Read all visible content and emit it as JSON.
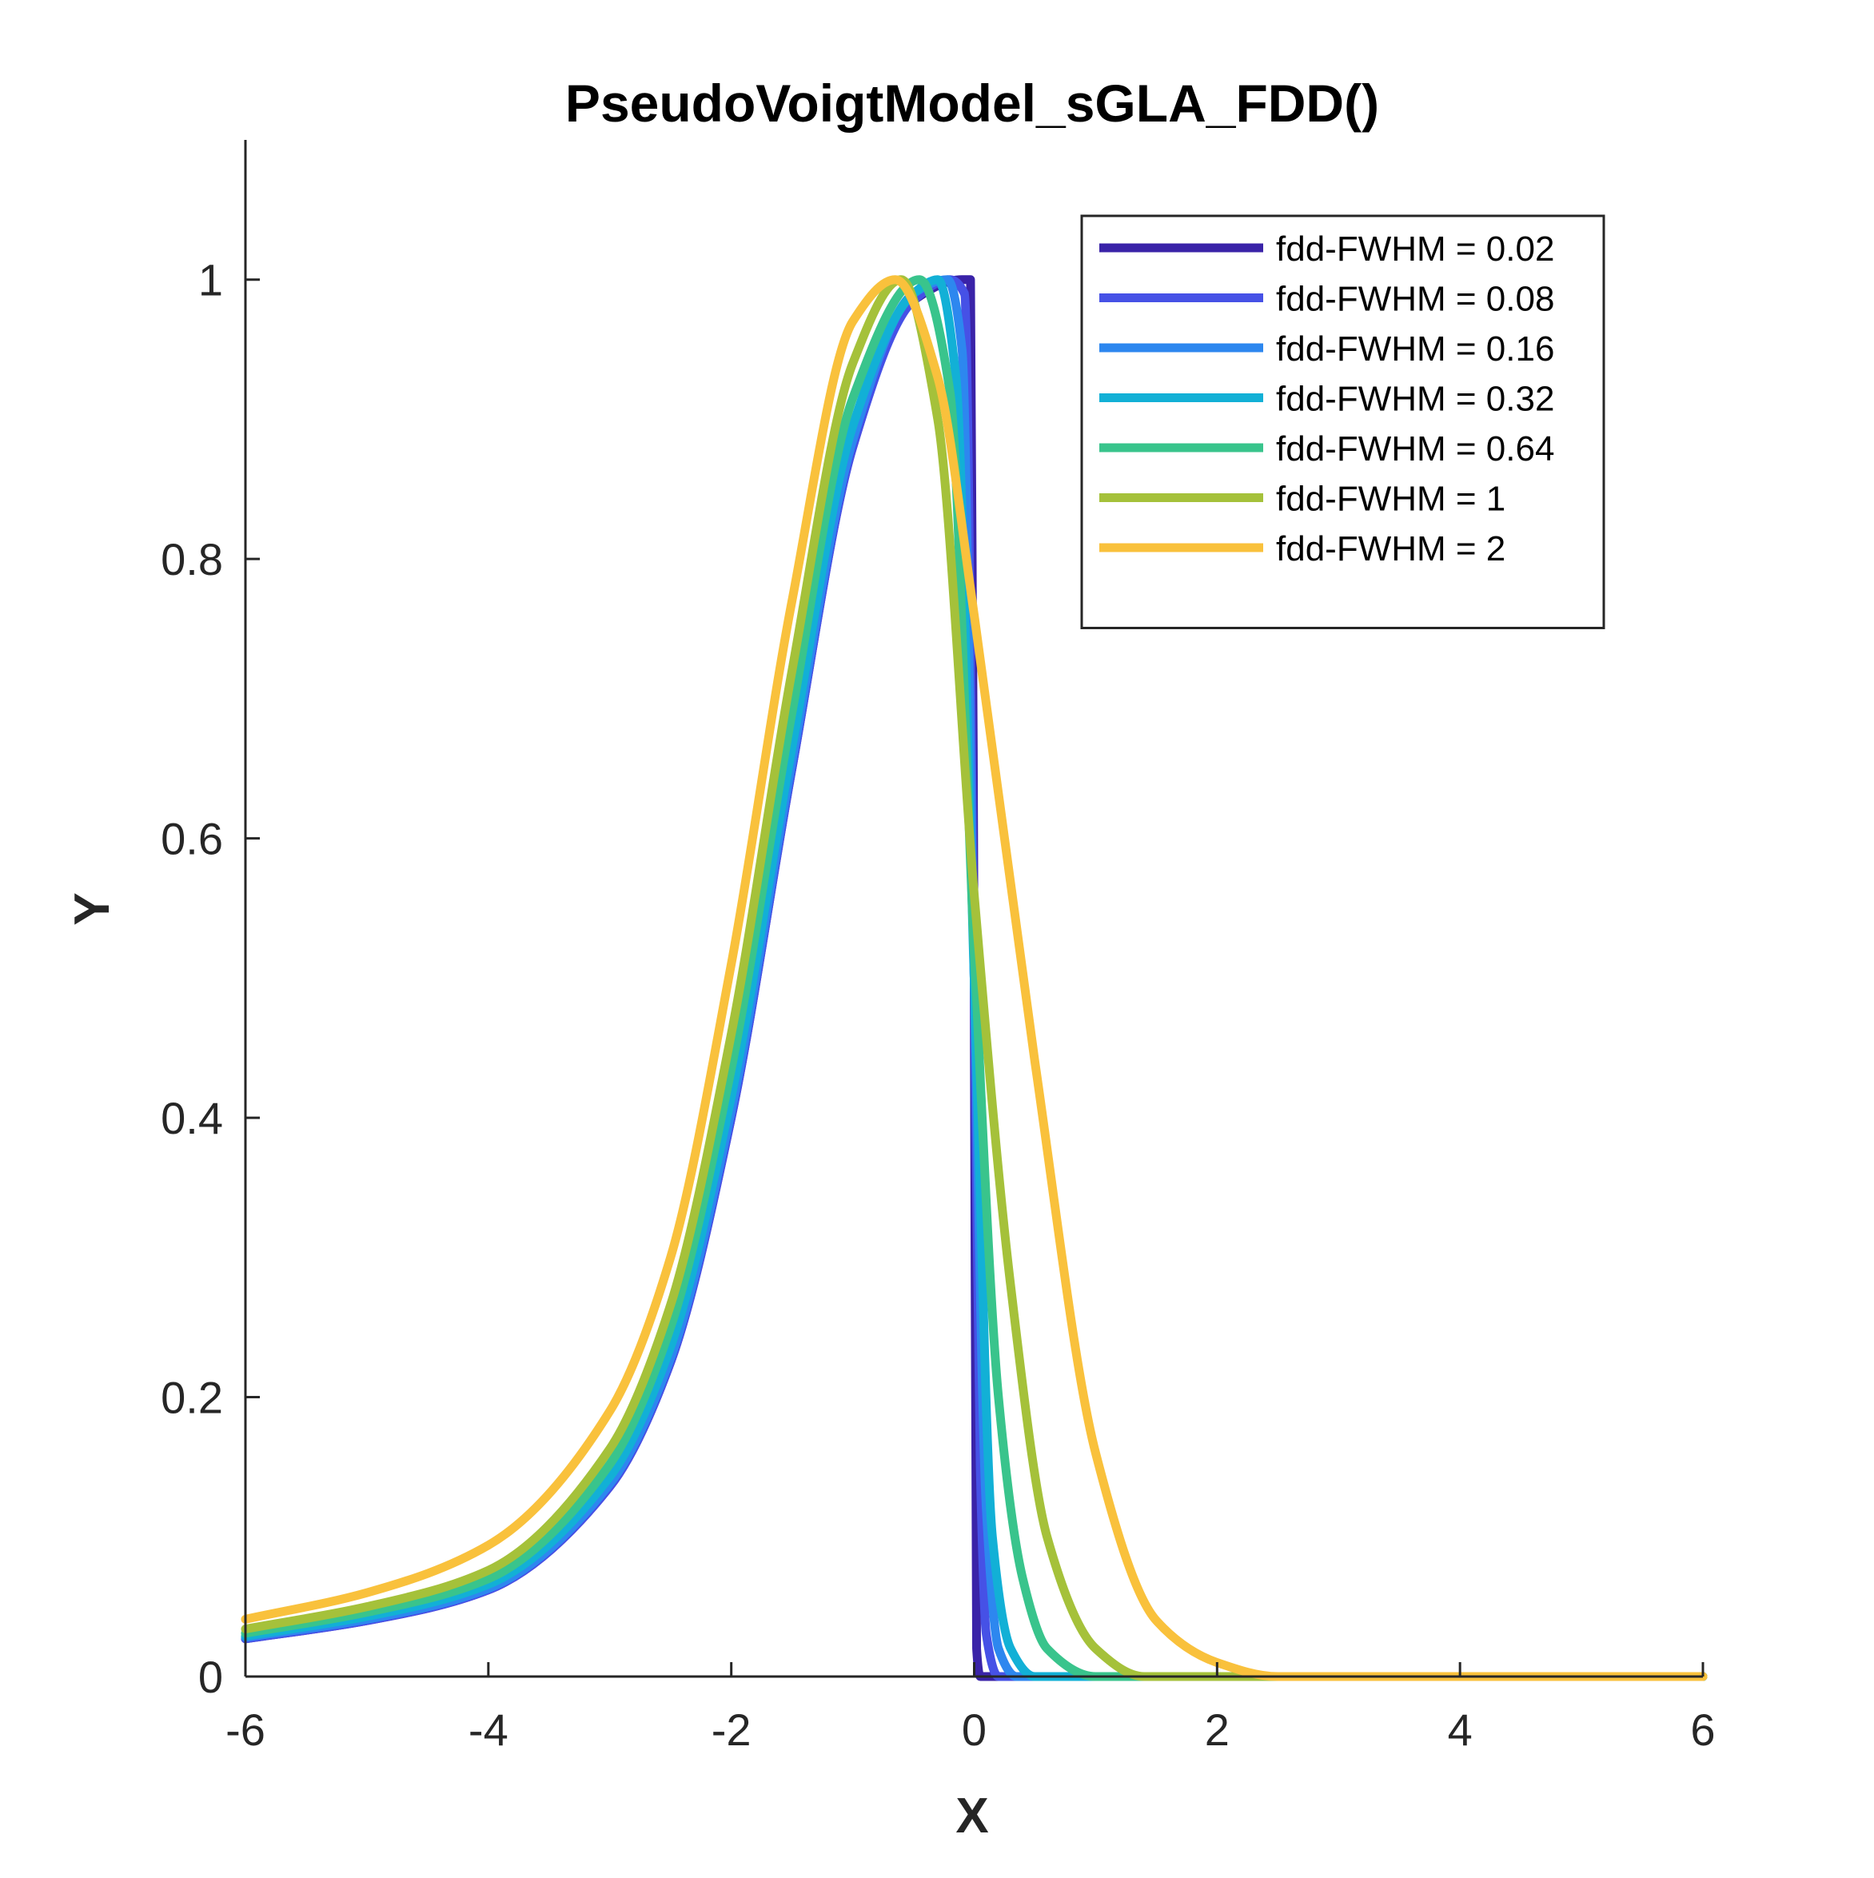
{
  "chart_data": {
    "type": "line",
    "title": "PseudoVoigtModel_sGLA_FDD()",
    "xlabel": "X",
    "ylabel": "Y",
    "xlim": [
      -6,
      6
    ],
    "ylim": [
      0,
      1.1
    ],
    "xticks": [
      -6,
      -4,
      -2,
      0,
      2,
      4,
      6
    ],
    "xtick_labels": [
      "-6",
      "-4",
      "-2",
      "0",
      "2",
      "4",
      "6"
    ],
    "yticks": [
      0,
      0.2,
      0.4,
      0.6,
      0.8,
      1
    ],
    "ytick_labels": [
      "0",
      "0.2",
      "0.4",
      "0.6",
      "0.8",
      "1"
    ],
    "grid": false,
    "legend_position": "top-right",
    "series": [
      {
        "name": "fdd-FWHM = 0.02",
        "color": "#3a23a8",
        "x": [
          -6,
          -5,
          -4,
          -3,
          -2.5,
          -2,
          -1.5,
          -1,
          -0.5,
          -0.1,
          -0.03,
          0,
          0.02,
          0.05,
          0.2,
          6
        ],
        "y": [
          0.027,
          0.04,
          0.062,
          0.136,
          0.225,
          0.4,
          0.65,
          0.88,
          0.985,
          1.0,
          1.0,
          0.5,
          0.02,
          0.0,
          0.0,
          0.0
        ]
      },
      {
        "name": "fdd-FWHM = 0.08",
        "color": "#4651e6",
        "x": [
          -6,
          -5,
          -4,
          -3,
          -2.5,
          -2,
          -1.5,
          -1,
          -0.5,
          -0.2,
          -0.08,
          0,
          0.05,
          0.1,
          0.2,
          6
        ],
        "y": [
          0.027,
          0.04,
          0.062,
          0.136,
          0.225,
          0.4,
          0.65,
          0.88,
          0.985,
          1.0,
          0.99,
          0.5,
          0.15,
          0.03,
          0.0,
          0.0
        ]
      },
      {
        "name": "fdd-FWHM = 0.16",
        "color": "#2d87ef",
        "x": [
          -6,
          -5,
          -4,
          -3,
          -2.5,
          -2,
          -1.5,
          -1,
          -0.5,
          -0.22,
          -0.1,
          0,
          0.1,
          0.2,
          0.35,
          6
        ],
        "y": [
          0.028,
          0.041,
          0.063,
          0.138,
          0.228,
          0.405,
          0.655,
          0.885,
          0.99,
          1.0,
          0.95,
          0.5,
          0.12,
          0.02,
          0.0,
          0.0
        ]
      },
      {
        "name": "fdd-FWHM = 0.32",
        "color": "#12b0d6",
        "x": [
          -6,
          -5,
          -4,
          -3,
          -2.5,
          -2,
          -1.5,
          -1,
          -0.5,
          -0.3,
          -0.15,
          0,
          0.15,
          0.3,
          0.5,
          6
        ],
        "y": [
          0.029,
          0.043,
          0.066,
          0.143,
          0.236,
          0.415,
          0.665,
          0.895,
          0.99,
          1.0,
          0.93,
          0.5,
          0.1,
          0.02,
          0.0,
          0.0
        ]
      },
      {
        "name": "fdd-FWHM = 0.64",
        "color": "#39c48c",
        "x": [
          -6,
          -5,
          -4,
          -3,
          -2.5,
          -2,
          -1.5,
          -1,
          -0.45,
          -0.2,
          0,
          0.2,
          0.4,
          0.6,
          1.0,
          6
        ],
        "y": [
          0.031,
          0.046,
          0.07,
          0.152,
          0.25,
          0.435,
          0.69,
          0.915,
          1.0,
          0.92,
          0.52,
          0.2,
          0.07,
          0.02,
          0.0,
          0.0
        ]
      },
      {
        "name": "fdd-FWHM = 1",
        "color": "#a5c13a",
        "x": [
          -6,
          -5,
          -4,
          -3,
          -2.5,
          -2,
          -1.5,
          -1,
          -0.6,
          -0.3,
          0,
          0.3,
          0.6,
          1.0,
          1.4,
          6
        ],
        "y": [
          0.034,
          0.05,
          0.076,
          0.163,
          0.266,
          0.46,
          0.72,
          0.94,
          1.0,
          0.9,
          0.56,
          0.28,
          0.1,
          0.02,
          0.0,
          0.0
        ]
      },
      {
        "name": "fdd-FWHM = 2",
        "color": "#f9c13c",
        "x": [
          -6,
          -5,
          -4,
          -3,
          -2.5,
          -2,
          -1.5,
          -1,
          -0.65,
          -0.3,
          0,
          0.5,
          1.0,
          1.5,
          2.0,
          2.5,
          6
        ],
        "y": [
          0.041,
          0.06,
          0.094,
          0.19,
          0.3,
          0.51,
          0.77,
          0.97,
          1.0,
          0.93,
          0.76,
          0.44,
          0.16,
          0.04,
          0.01,
          0.0,
          0.0
        ]
      }
    ]
  }
}
